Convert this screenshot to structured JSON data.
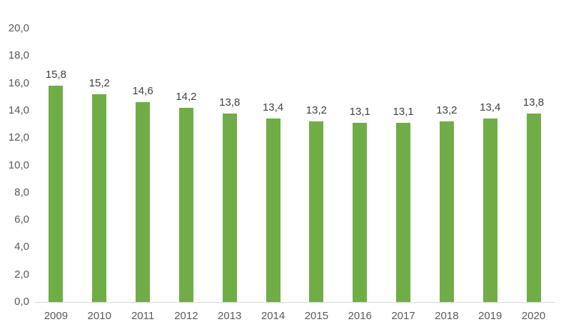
{
  "chart_data": {
    "type": "bar",
    "title": "",
    "xlabel": "",
    "ylabel": "",
    "categories": [
      "2009",
      "2010",
      "2011",
      "2012",
      "2013",
      "2014",
      "2015",
      "2016",
      "2017",
      "2018",
      "2019",
      "2020"
    ],
    "values": [
      15.8,
      15.2,
      14.6,
      14.2,
      13.8,
      13.4,
      13.2,
      13.1,
      13.1,
      13.2,
      13.4,
      13.8
    ],
    "value_labels": [
      "15,8",
      "15,2",
      "14,6",
      "14,2",
      "13,8",
      "13,4",
      "13,2",
      "13,1",
      "13,1",
      "13,2",
      "13,4",
      "13,8"
    ],
    "y_ticks": [
      20,
      18,
      16,
      14,
      12,
      10,
      8,
      6,
      4,
      2,
      0
    ],
    "y_tick_labels": [
      "20,0",
      "18,0",
      "16,0",
      "14,0",
      "12,0",
      "10,0",
      "8,0",
      "6,0",
      "4,0",
      "2,0",
      "0,0"
    ],
    "ylim": [
      0,
      20
    ],
    "grid": false,
    "legend": "none",
    "colors": {
      "bar": "#70AD47",
      "value_label": "#404040",
      "axis_label": "#595959",
      "axis_line": "#D9D9D9",
      "background": "#FFFFFF"
    }
  }
}
